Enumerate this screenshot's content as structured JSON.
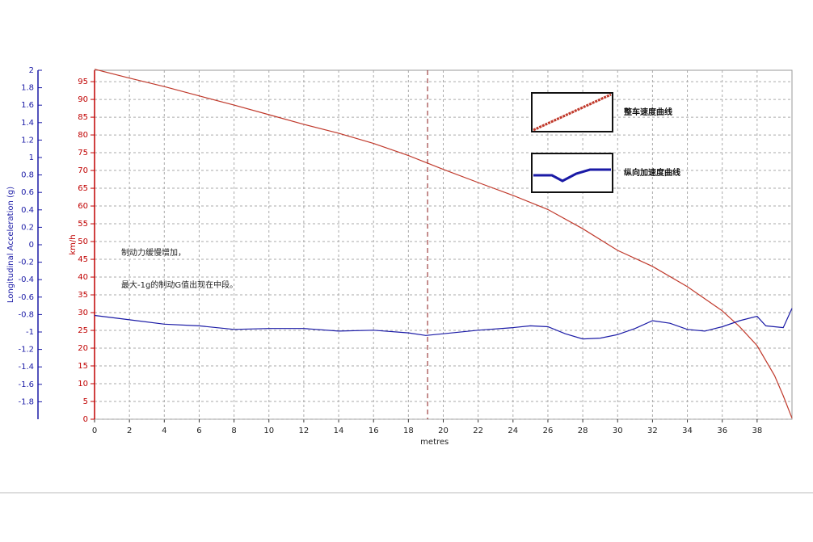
{
  "chart_data": {
    "type": "line",
    "xlabel": "metres",
    "ylabel": "km/h",
    "y2label": "Longitudinal Acceleration (g)",
    "xlim": [
      0,
      40
    ],
    "xticks": [
      0,
      2,
      4,
      6,
      8,
      10,
      12,
      14,
      16,
      18,
      20,
      22,
      24,
      26,
      28,
      30,
      32,
      34,
      36,
      38
    ],
    "ylim": [
      0,
      98.2
    ],
    "yticks": [
      0,
      5,
      10,
      15,
      20,
      25,
      30,
      35,
      40,
      45,
      50,
      55,
      60,
      65,
      70,
      75,
      80,
      85,
      90,
      95
    ],
    "y2lim": [
      -2,
      2
    ],
    "y2ticks": [
      2,
      1.8,
      1.6,
      1.4,
      1.2,
      1,
      0.8,
      0.6,
      0.4,
      0.2,
      0,
      -0.2,
      -0.4,
      -0.6,
      -0.8,
      -1,
      -1.2,
      -1.4,
      -1.6,
      -1.8
    ],
    "grid": true,
    "cursor_x": 19.1,
    "series": [
      {
        "name": "整车速度曲线",
        "color": "#c0392b",
        "x": [
          0,
          2,
          4,
          6,
          8,
          10,
          12,
          14,
          16,
          18,
          20,
          22,
          24,
          26,
          28,
          30,
          32,
          34,
          36,
          37,
          38,
          39,
          39.5,
          40
        ],
        "values": [
          98.5,
          96,
          93.6,
          91,
          88.4,
          85.7,
          83,
          80.5,
          77.6,
          74.2,
          70.3,
          66.6,
          63,
          59,
          53.6,
          47.5,
          43,
          37.3,
          30.5,
          26,
          20.7,
          12.3,
          6.6,
          0.3
        ]
      },
      {
        "name": "纵向加速度曲线",
        "color": "#1a1aa6",
        "axis": "y2",
        "x": [
          0,
          2,
          4,
          6,
          8,
          10,
          12,
          14,
          16,
          18,
          19,
          20,
          22,
          24,
          25,
          26,
          27,
          28,
          29,
          30,
          31,
          32,
          33,
          34,
          35,
          36,
          37,
          38,
          38.5,
          39,
          39.5,
          40
        ],
        "values": [
          -0.81,
          -0.86,
          -0.91,
          -0.93,
          -0.97,
          -0.96,
          -0.96,
          -0.99,
          -0.98,
          -1.01,
          -1.04,
          -1.02,
          -0.98,
          -0.95,
          -0.93,
          -0.94,
          -1.02,
          -1.08,
          -1.07,
          -1.03,
          -0.96,
          -0.87,
          -0.9,
          -0.97,
          -0.99,
          -0.94,
          -0.87,
          -0.82,
          -0.93,
          -0.94,
          -0.95,
          -0.73
        ]
      }
    ],
    "annotations": [
      "制动力缓慢增加，",
      "最大-1g的制动G值出现在中段。"
    ]
  }
}
